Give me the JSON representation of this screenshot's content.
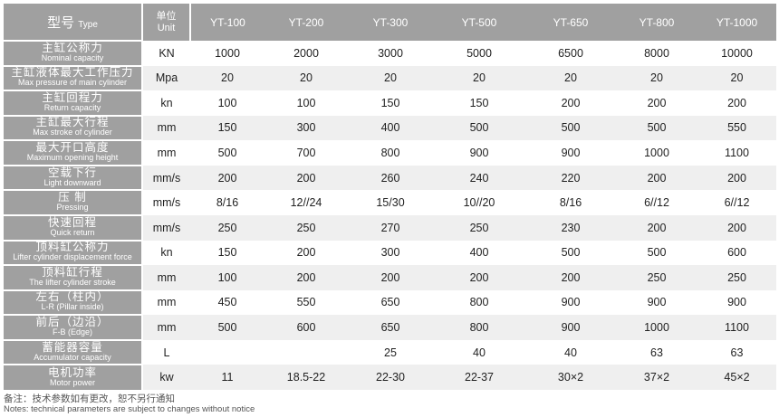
{
  "header": {
    "type_zh": "型号",
    "type_en": "Type",
    "unit_zh": "单位",
    "unit_en": "Unit",
    "models": [
      "YT-100",
      "YT-200",
      "YT-300",
      "YT-500",
      "YT-650",
      "YT-800",
      "YT-1000"
    ]
  },
  "rows": [
    {
      "zh": "主缸公称力",
      "en": "Nominal capacity",
      "unit": "KN",
      "values": [
        "1000",
        "2000",
        "3000",
        "5000",
        "6500",
        "8000",
        "10000"
      ]
    },
    {
      "zh": "主缸液体最大工作压力",
      "en": "Max pressure of main cylinder",
      "unit": "Mpa",
      "values": [
        "20",
        "20",
        "20",
        "20",
        "20",
        "20",
        "20"
      ]
    },
    {
      "zh": "主缸回程力",
      "en": "Return capacity",
      "unit": "kn",
      "values": [
        "100",
        "100",
        "150",
        "150",
        "200",
        "200",
        "200"
      ]
    },
    {
      "zh": "主缸最大行程",
      "en": "Max stroke of cylinder",
      "unit": "mm",
      "values": [
        "150",
        "300",
        "400",
        "500",
        "500",
        "500",
        "550"
      ]
    },
    {
      "zh": "最大开口高度",
      "en": "Maximum opening height",
      "unit": "mm",
      "values": [
        "500",
        "700",
        "800",
        "900",
        "900",
        "1000",
        "1100"
      ]
    },
    {
      "zh": "空载下行",
      "en": "Light downward",
      "unit": "mm/s",
      "values": [
        "200",
        "200",
        "260",
        "240",
        "220",
        "200",
        "200"
      ]
    },
    {
      "zh": "压 制",
      "en": "Pressing",
      "unit": "mm/s",
      "values": [
        "8/16",
        "12//24",
        "15/30",
        "10//20",
        "8/16",
        "6//12",
        "6//12"
      ]
    },
    {
      "zh": "快速回程",
      "en": "Quick return",
      "unit": "mm/s",
      "values": [
        "250",
        "250",
        "270",
        "250",
        "230",
        "200",
        "200"
      ]
    },
    {
      "zh": "顶料缸公称力",
      "en": "Lifter cylinder displacement force",
      "unit": "kn",
      "values": [
        "150",
        "200",
        "300",
        "400",
        "500",
        "500",
        "600"
      ]
    },
    {
      "zh": "顶料缸行程",
      "en": "The lifter cylinder stroke",
      "unit": "mm",
      "values": [
        "100",
        "200",
        "200",
        "200",
        "200",
        "250",
        "250"
      ]
    },
    {
      "zh": "左右（柱内）",
      "en": "L-R  (Pillar inside)",
      "unit": "mm",
      "values": [
        "450",
        "550",
        "650",
        "800",
        "900",
        "900",
        "900"
      ]
    },
    {
      "zh": "前后（边沿）",
      "en": "F-B   (Edge)",
      "unit": "mm",
      "values": [
        "500",
        "600",
        "650",
        "800",
        "900",
        "1000",
        "1100"
      ]
    },
    {
      "zh": "蓄能器容量",
      "en": "Accumulator capacity",
      "unit": "L",
      "values": [
        "",
        "",
        "25",
        "40",
        "40",
        "63",
        "63"
      ]
    },
    {
      "zh": "电机功率",
      "en": "Motor power",
      "unit": "kw",
      "values": [
        "11",
        "18.5-22",
        "22-30",
        "22-37",
        "30×2",
        "37×2",
        "45×2"
      ]
    }
  ],
  "notes": {
    "zh": "备注：技术参数如有更改，恕不另行通知",
    "en": "Notes: technical parameters are subject to changes without notice"
  }
}
